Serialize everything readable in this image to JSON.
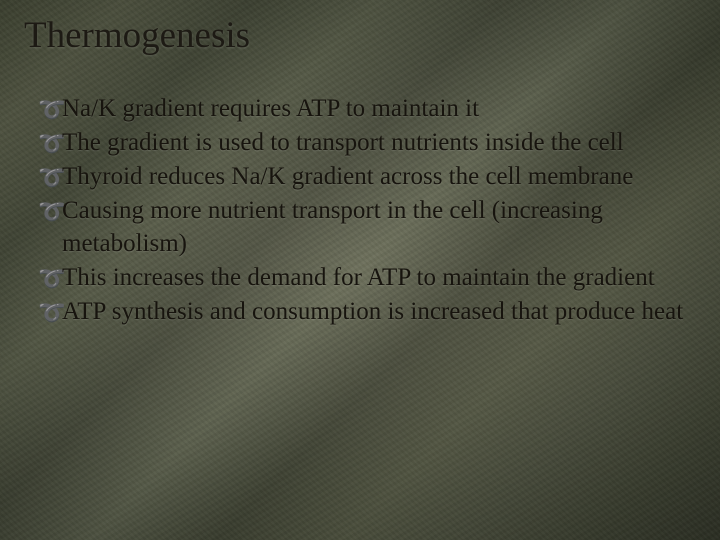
{
  "slide": {
    "title": "Thermogenesis",
    "title_fontsize": 37,
    "title_color": "#1d1a14",
    "body_fontsize": 25,
    "body_color": "#17140e",
    "bullet_glyph": "➰",
    "bullets": [
      "Na/K gradient requires ATP to maintain it",
      "The gradient is used to transport nutrients inside the cell",
      "Thyroid reduces Na/K gradient across the cell membrane",
      "Causing more nutrient transport in the cell (increasing metabolism)",
      "This increases the demand for ATP to maintain the gradient",
      "ATP synthesis and consumption is increased that produce heat"
    ],
    "background": {
      "base_colors": [
        "#4a4e3a",
        "#5a5d48",
        "#3e4232",
        "#2e3024"
      ],
      "vignette_color": "#0a0c08"
    }
  }
}
